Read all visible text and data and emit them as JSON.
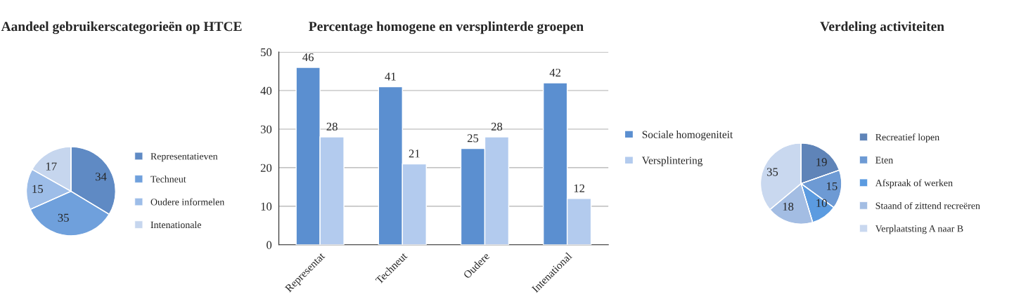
{
  "chart_data": [
    {
      "type": "pie",
      "title": "Aandeel gebruikerscategorieën op HTCE",
      "categories": [
        "Representatieven",
        "Techneut",
        "Oudere informelen",
        "Intenationale"
      ],
      "values": [
        34,
        35,
        15,
        17
      ],
      "colors": [
        "#5f8ac4",
        "#6fa0dc",
        "#9dbde8",
        "#c6d6ee"
      ],
      "data_labels": true,
      "legend": "right"
    },
    {
      "type": "bar",
      "title": "Percentage homogene en versplinterde groepen",
      "categories": [
        "Representat",
        "Techneut",
        "Oudere",
        "Intenational"
      ],
      "series": [
        {
          "name": "Sociale homogeniteit",
          "color": "#5b8fd0",
          "values": [
            46,
            41,
            25,
            42
          ]
        },
        {
          "name": "Versplintering",
          "color": "#b3cbee",
          "values": [
            28,
            21,
            28,
            12
          ]
        }
      ],
      "ylim": [
        0,
        50
      ],
      "yticks": [
        0,
        10,
        20,
        30,
        40,
        50
      ],
      "grid": "y",
      "data_labels": true,
      "legend": "right"
    },
    {
      "type": "pie",
      "title": "Verdeling activiteiten",
      "categories": [
        "Recreatief lopen",
        "Eten",
        "Afspraak of werken",
        "Staand of zittend recreëren",
        "Verplaatsting A naar B"
      ],
      "values": [
        19,
        15,
        10,
        18,
        35
      ],
      "colors": [
        "#5f84b8",
        "#6d9ad4",
        "#5b9be0",
        "#a3bde3",
        "#c9d8ef"
      ],
      "data_labels": true,
      "legend": "right"
    }
  ]
}
